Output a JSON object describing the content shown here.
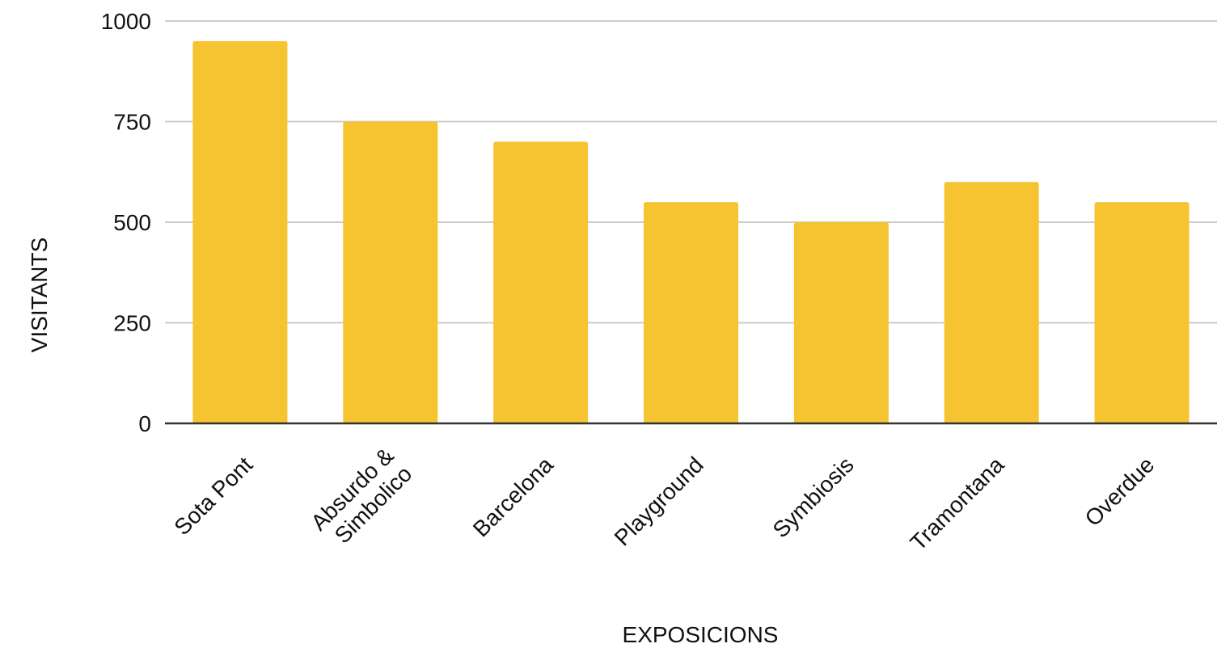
{
  "chart_data": {
    "type": "bar",
    "xlabel": "EXPOSICIONS",
    "ylabel": "VISITANTS",
    "categories": [
      [
        "Sota Pont"
      ],
      [
        "Absurdo &",
        "Simbolico"
      ],
      [
        "Barcelona"
      ],
      [
        "Playground"
      ],
      [
        "Symbiosis"
      ],
      [
        "Tramontana"
      ],
      [
        "Overdue"
      ]
    ],
    "values": [
      950,
      750,
      700,
      550,
      500,
      600,
      550
    ],
    "ylim": [
      0,
      1000
    ],
    "yticks": [
      0,
      250,
      500,
      750,
      1000
    ],
    "grid": true,
    "legend": "none",
    "colors": {
      "bar": "#F6C431",
      "grid": "#CCCCCC",
      "baseline": "#333333",
      "text": "#111111"
    }
  }
}
